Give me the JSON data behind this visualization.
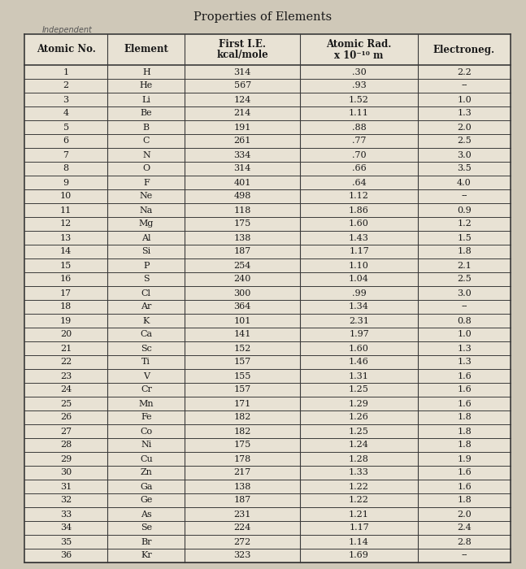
{
  "title": "Properties of Elements",
  "subtitle": "Independent",
  "header_line1": [
    "Atomic No.",
    "Element",
    "First I.E.",
    "Atomic Rad.",
    "Electroneg."
  ],
  "header_line2": [
    "",
    "",
    "kcal/mole",
    "x 10-10 m",
    ""
  ],
  "rows": [
    [
      "1",
      "H",
      "314",
      ".30",
      "2.2"
    ],
    [
      "2",
      "He",
      "567",
      ".93",
      "--"
    ],
    [
      "3",
      "Li",
      "124",
      "1.52",
      "1.0"
    ],
    [
      "4",
      "Be",
      "214",
      "1.11",
      "1.3"
    ],
    [
      "5",
      "B",
      "191",
      ".88",
      "2.0"
    ],
    [
      "6",
      "C",
      "261",
      ".77",
      "2.5"
    ],
    [
      "7",
      "N",
      "334",
      ".70",
      "3.0"
    ],
    [
      "8",
      "O",
      "314",
      ".66",
      "3.5"
    ],
    [
      "9",
      "F",
      "401",
      ".64",
      "4.0"
    ],
    [
      "10",
      "Ne",
      "498",
      "1.12",
      "--"
    ],
    [
      "11",
      "Na",
      "118",
      "1.86",
      "0.9"
    ],
    [
      "12",
      "Mg",
      "175",
      "1.60",
      "1.2"
    ],
    [
      "13",
      "Al",
      "138",
      "1.43",
      "1.5"
    ],
    [
      "14",
      "Si",
      "187",
      "1.17",
      "1.8"
    ],
    [
      "15",
      "P",
      "254",
      "1.10",
      "2.1"
    ],
    [
      "16",
      "S",
      "240",
      "1.04",
      "2.5"
    ],
    [
      "17",
      "Cl",
      "300",
      ".99",
      "3.0"
    ],
    [
      "18",
      "Ar",
      "364",
      "1.34",
      "--"
    ],
    [
      "19",
      "K",
      "101",
      "2.31",
      "0.8"
    ],
    [
      "20",
      "Ca",
      "141",
      "1.97",
      "1.0"
    ],
    [
      "21",
      "Sc",
      "152",
      "1.60",
      "1.3"
    ],
    [
      "22",
      "Ti",
      "157",
      "1.46",
      "1.3"
    ],
    [
      "23",
      "V",
      "155",
      "1.31",
      "1.6"
    ],
    [
      "24",
      "Cr",
      "157",
      "1.25",
      "1.6"
    ],
    [
      "25",
      "Mn",
      "171",
      "1.29",
      "1.6"
    ],
    [
      "26",
      "Fe",
      "182",
      "1.26",
      "1.8"
    ],
    [
      "27",
      "Co",
      "182",
      "1.25",
      "1.8"
    ],
    [
      "28",
      "Ni",
      "175",
      "1.24",
      "1.8"
    ],
    [
      "29",
      "Cu",
      "178",
      "1.28",
      "1.9"
    ],
    [
      "30",
      "Zn",
      "217",
      "1.33",
      "1.6"
    ],
    [
      "31",
      "Ga",
      "138",
      "1.22",
      "1.6"
    ],
    [
      "32",
      "Ge",
      "187",
      "1.22",
      "1.8"
    ],
    [
      "33",
      "As",
      "231",
      "1.21",
      "2.0"
    ],
    [
      "34",
      "Se",
      "224",
      "1.17",
      "2.4"
    ],
    [
      "35",
      "Br",
      "272",
      "1.14",
      "2.8"
    ],
    [
      "36",
      "Kr",
      "323",
      "1.69",
      "--"
    ]
  ],
  "bg_color": "#cfc8b8",
  "table_bg": "#e8e2d4",
  "line_color": "#3a3a3a",
  "text_color": "#1a1a1a",
  "figsize": [
    6.47,
    7.0
  ],
  "dpi": 100
}
